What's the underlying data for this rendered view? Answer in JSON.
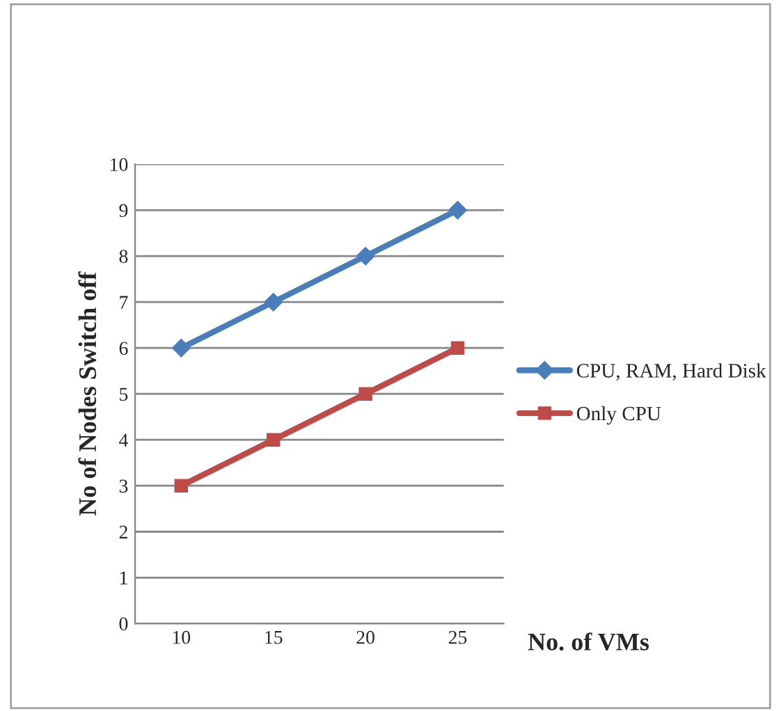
{
  "chart_data": {
    "type": "line",
    "xlabel": "No. of VMs",
    "ylabel": "No of Nodes Switch off",
    "categories": [
      "10",
      "15",
      "20",
      "25"
    ],
    "series": [
      {
        "name": "CPU, RAM, Hard Disk",
        "color": "#4a7ebb",
        "values": [
          6,
          7,
          8,
          9
        ],
        "marker": "diamond"
      },
      {
        "name": "Only CPU",
        "color": "#be4b48",
        "values": [
          3,
          4,
          5,
          6
        ],
        "marker": "square"
      }
    ],
    "ylim": [
      0,
      10
    ],
    "yticks": [
      0,
      1,
      2,
      3,
      4,
      5,
      6,
      7,
      8,
      9,
      10
    ],
    "grid": "y",
    "legend": "right",
    "line_style": "solid"
  }
}
